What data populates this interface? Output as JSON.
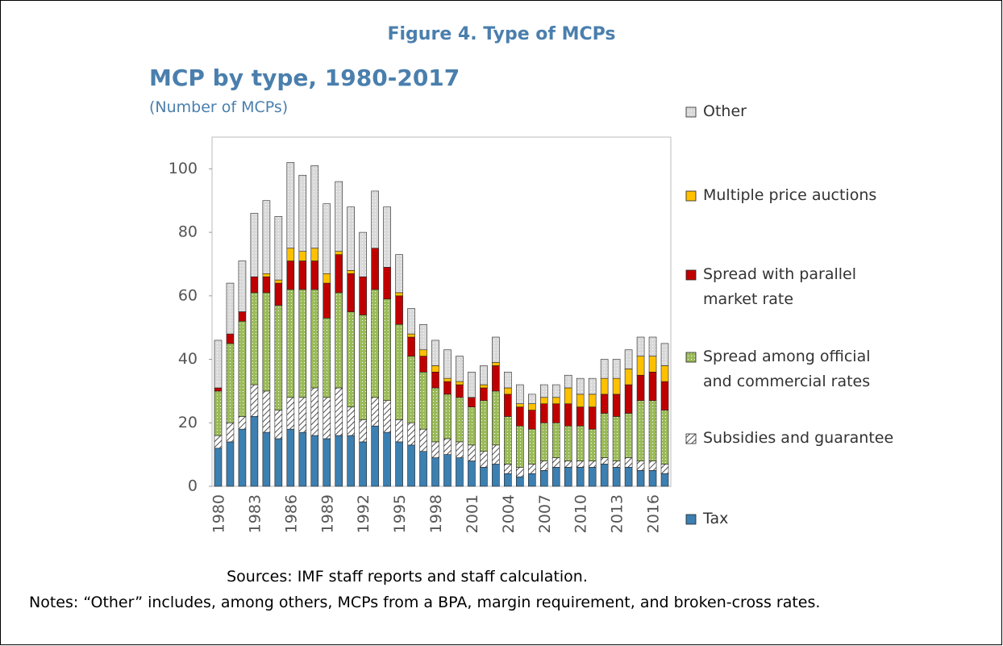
{
  "figure_title": "Figure 4. Type of MCPs",
  "chart_data": {
    "type": "stacked_bar",
    "title": "MCP by type, 1980-2017",
    "subtitle": "(Number of MCPs)",
    "categories": [
      "1980",
      null,
      null,
      "1983",
      null,
      null,
      "1986",
      null,
      null,
      "1989",
      null,
      null,
      "1992",
      null,
      null,
      "1995",
      null,
      null,
      "1998",
      null,
      null,
      "2001",
      null,
      null,
      "2004",
      null,
      null,
      "2007",
      null,
      null,
      "2010",
      null,
      null,
      "2013",
      null,
      null,
      "2016",
      null
    ],
    "series": [
      {
        "name": "Tax",
        "color": "#3c7fb1",
        "pattern": "solid",
        "values": [
          12,
          14,
          18,
          22,
          17,
          15,
          18,
          17,
          16,
          15,
          16,
          16,
          14,
          19,
          17,
          14,
          13,
          11,
          9,
          10,
          9,
          8,
          6,
          7,
          4,
          3,
          4,
          5,
          6,
          6,
          6,
          6,
          7,
          6,
          6,
          5,
          5,
          4
        ]
      },
      {
        "name": "Subsidies and guarantee",
        "color": "#ffffff",
        "pattern": "hatch",
        "values": [
          4,
          6,
          4,
          10,
          13,
          9,
          10,
          11,
          15,
          13,
          15,
          9,
          7,
          9,
          10,
          7,
          7,
          7,
          5,
          5,
          5,
          5,
          5,
          6,
          3,
          3,
          3,
          3,
          3,
          2,
          2,
          2,
          2,
          2,
          3,
          3,
          3,
          3
        ]
      },
      {
        "name": "Spread among official and commercial rates",
        "color": "#9bbb59",
        "pattern": "dots",
        "values": [
          14,
          25,
          30,
          29,
          31,
          33,
          34,
          34,
          31,
          25,
          30,
          30,
          33,
          34,
          32,
          30,
          21,
          18,
          17,
          14,
          14,
          12,
          16,
          17,
          15,
          13,
          11,
          12,
          11,
          11,
          11,
          10,
          14,
          14,
          14,
          19,
          19,
          17
        ]
      },
      {
        "name": "Spread with parallel market rate",
        "color": "#c00000",
        "pattern": "solid",
        "values": [
          1,
          3,
          3,
          5,
          5,
          7,
          9,
          9,
          9,
          11,
          12,
          12,
          12,
          13,
          10,
          9,
          6,
          5,
          5,
          4,
          4,
          3,
          4,
          8,
          7,
          6,
          6,
          6,
          6,
          7,
          6,
          7,
          6,
          7,
          9,
          8,
          9,
          9
        ]
      },
      {
        "name": "Multiple price auctions",
        "color": "#ffc000",
        "pattern": "solid",
        "values": [
          0,
          0,
          0,
          0,
          1,
          1,
          4,
          3,
          4,
          3,
          1,
          1,
          0,
          0,
          0,
          1,
          1,
          2,
          2,
          1,
          1,
          0,
          1,
          1,
          2,
          1,
          2,
          2,
          2,
          5,
          4,
          4,
          5,
          5,
          5,
          6,
          5,
          5
        ]
      },
      {
        "name": "Other",
        "color": "#d9d9d9",
        "pattern": "dots",
        "values": [
          15,
          16,
          16,
          20,
          23,
          20,
          27,
          24,
          26,
          22,
          22,
          20,
          14,
          18,
          19,
          12,
          8,
          8,
          8,
          9,
          8,
          8,
          6,
          8,
          5,
          6,
          3,
          4,
          4,
          4,
          5,
          5,
          6,
          6,
          6,
          6,
          6,
          7
        ]
      }
    ],
    "ylim": [
      0,
      110
    ],
    "yticks": [
      0,
      20,
      40,
      60,
      80,
      100
    ]
  },
  "sources": "Sources: IMF staff reports and staff calculation.",
  "notes": "Notes: “Other” includes, among others, MCPs from a BPA, margin requirement, and broken-cross rates."
}
